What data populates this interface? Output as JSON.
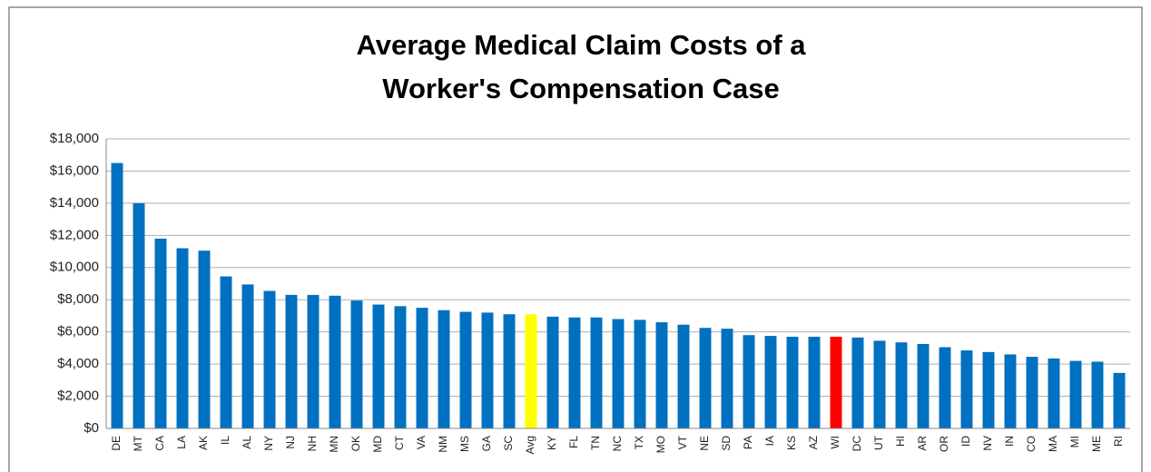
{
  "chart_data": {
    "type": "bar",
    "title": [
      "Average Medical Claim Costs of a",
      "Worker's Compensation Case"
    ],
    "categories": [
      "DE",
      "MT",
      "CA",
      "LA",
      "AK",
      "IL",
      "AL",
      "NY",
      "NJ",
      "NH",
      "MN",
      "OK",
      "MD",
      "CT",
      "VA",
      "NM",
      "MS",
      "GA",
      "SC",
      "Avg",
      "KY",
      "FL",
      "TN",
      "NC",
      "TX",
      "MO",
      "VT",
      "NE",
      "SD",
      "PA",
      "IA",
      "KS",
      "AZ",
      "WI",
      "DC",
      "UT",
      "HI",
      "AR",
      "OR",
      "ID",
      "NV",
      "IN",
      "CO",
      "MA",
      "MI",
      "ME",
      "RI"
    ],
    "values": [
      16500,
      14000,
      11800,
      11200,
      11050,
      9450,
      8950,
      8550,
      8300,
      8300,
      8250,
      7950,
      7700,
      7600,
      7500,
      7350,
      7250,
      7200,
      7100,
      7100,
      6950,
      6900,
      6900,
      6800,
      6750,
      6600,
      6450,
      6250,
      6200,
      5800,
      5750,
      5700,
      5700,
      5700,
      5650,
      5450,
      5350,
      5250,
      5050,
      4850,
      4750,
      4600,
      4450,
      4350,
      4200,
      4150,
      3450
    ],
    "color": "#0070c0",
    "highlight_colors": {
      "Avg": "#ffff00",
      "WI": "#ff0000"
    },
    "ylim": [
      0,
      18000
    ],
    "yticks": [
      {
        "value": 0,
        "label": "$0"
      },
      {
        "value": 2000,
        "label": "$2,000"
      },
      {
        "value": 4000,
        "label": "$4,000"
      },
      {
        "value": 6000,
        "label": "$6,000"
      },
      {
        "value": 8000,
        "label": "$8,000"
      },
      {
        "value": 10000,
        "label": "$10,000"
      },
      {
        "value": 12000,
        "label": "$12,000"
      },
      {
        "value": 14000,
        "label": "$14,000"
      },
      {
        "value": 16000,
        "label": "$16,000"
      },
      {
        "value": 18000,
        "label": "$18,000"
      }
    ],
    "grid": true
  }
}
